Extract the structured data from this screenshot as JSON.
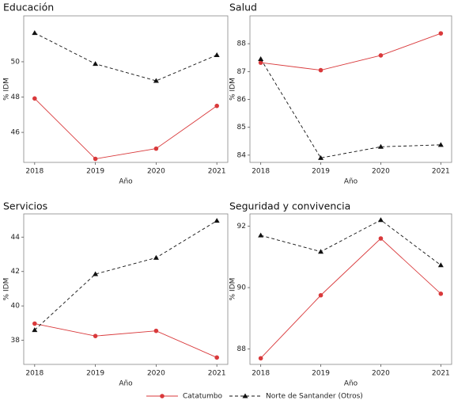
{
  "chart_data": [
    {
      "type": "line",
      "title": "Educación",
      "xlabel": "Año",
      "ylabel": "% IDM",
      "x": [
        2018,
        2019,
        2020,
        2021
      ],
      "xlim": [
        2017.82,
        2021.18
      ],
      "xticks": [
        2018,
        2019,
        2020,
        2021
      ],
      "ylim": [
        44.3,
        52.6
      ],
      "yticks": [
        46,
        48,
        50
      ],
      "series": [
        {
          "name": "Catatumbo",
          "color": "#d9393b",
          "style": "solid",
          "marker": "circle",
          "values": [
            47.92,
            44.5,
            45.08,
            47.5
          ]
        },
        {
          "name": "Norte de Santander (Otros)",
          "color": "#111111",
          "style": "dashed",
          "marker": "triangle",
          "values": [
            51.63,
            49.88,
            48.92,
            50.38
          ]
        }
      ]
    },
    {
      "type": "line",
      "title": "Salud",
      "xlabel": "Año",
      "ylabel": "% IDM",
      "x": [
        2018,
        2019,
        2020,
        2021
      ],
      "xlim": [
        2017.82,
        2021.18
      ],
      "xticks": [
        2018,
        2019,
        2020,
        2021
      ],
      "ylim": [
        83.74,
        89.0
      ],
      "yticks": [
        84,
        85,
        86,
        87,
        88
      ],
      "series": [
        {
          "name": "Catatumbo",
          "color": "#d9393b",
          "style": "solid",
          "marker": "circle",
          "values": [
            87.32,
            87.05,
            87.58,
            88.37
          ]
        },
        {
          "name": "Norte de Santander (Otros)",
          "color": "#111111",
          "style": "dashed",
          "marker": "triangle",
          "values": [
            87.45,
            83.9,
            84.3,
            84.37
          ]
        }
      ]
    },
    {
      "type": "line",
      "title": "Servicios",
      "xlabel": "Año",
      "ylabel": "% IDM",
      "x": [
        2018,
        2019,
        2020,
        2021
      ],
      "xlim": [
        2017.82,
        2021.18
      ],
      "xticks": [
        2018,
        2019,
        2020,
        2021
      ],
      "ylim": [
        36.6,
        45.35
      ],
      "yticks": [
        38,
        40,
        42,
        44
      ],
      "series": [
        {
          "name": "Catatumbo",
          "color": "#d9393b",
          "style": "solid",
          "marker": "circle",
          "values": [
            38.97,
            38.25,
            38.55,
            37.0
          ]
        },
        {
          "name": "Norte de Santander (Otros)",
          "color": "#111111",
          "style": "dashed",
          "marker": "triangle",
          "values": [
            38.6,
            41.85,
            42.8,
            44.95
          ]
        }
      ]
    },
    {
      "type": "line",
      "title": "Seguridad y convivencia",
      "xlabel": "Año",
      "ylabel": "% IDM",
      "x": [
        2018,
        2019,
        2020,
        2021
      ],
      "xlim": [
        2017.82,
        2021.18
      ],
      "xticks": [
        2018,
        2019,
        2020,
        2021
      ],
      "ylim": [
        87.5,
        92.4
      ],
      "yticks": [
        88,
        90,
        92
      ],
      "series": [
        {
          "name": "Catatumbo",
          "color": "#d9393b",
          "style": "solid",
          "marker": "circle",
          "values": [
            87.7,
            89.75,
            91.6,
            89.8
          ]
        },
        {
          "name": "Norte de Santander (Otros)",
          "color": "#111111",
          "style": "dashed",
          "marker": "triangle",
          "values": [
            91.7,
            91.17,
            92.2,
            90.73
          ]
        }
      ]
    }
  ]
}
